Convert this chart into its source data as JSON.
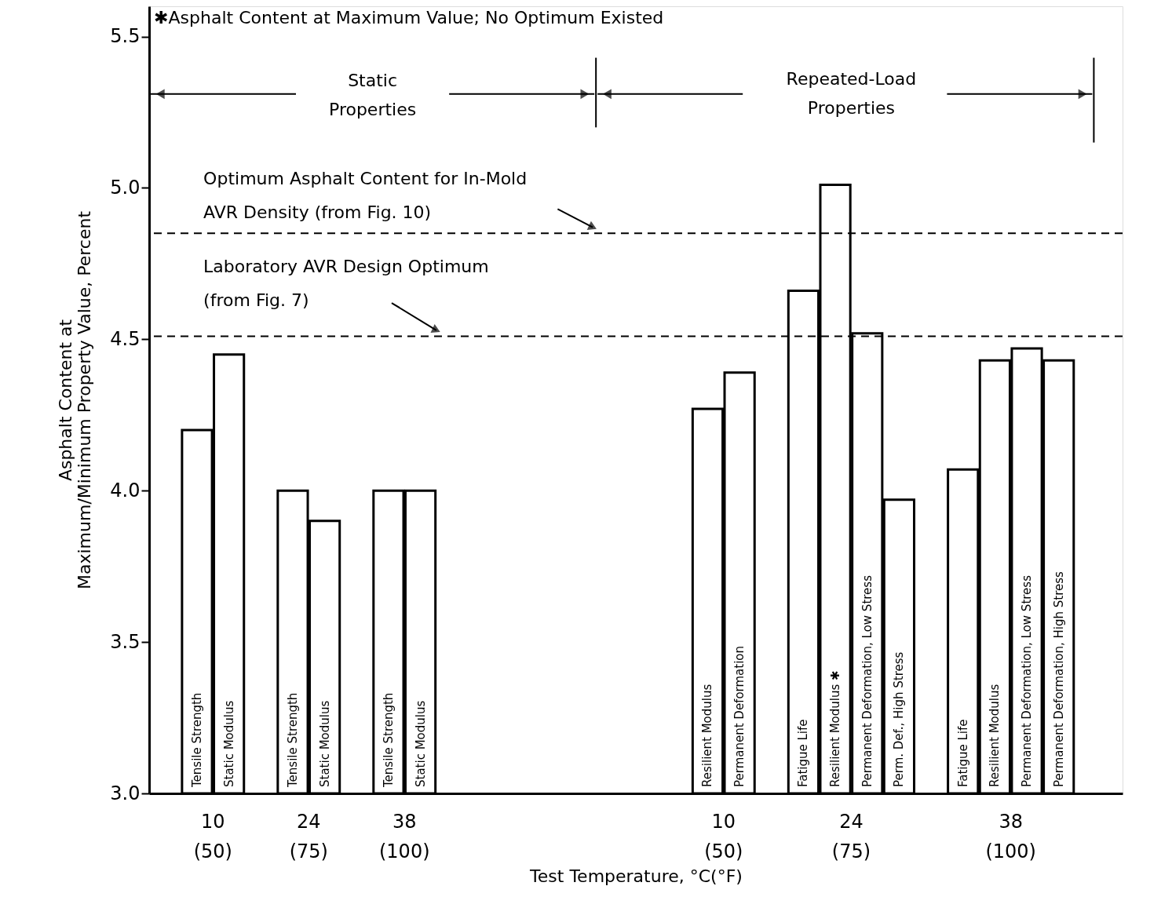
{
  "chart_data": {
    "type": "bar",
    "xlabel": "Test Temperature, °C(°F)",
    "ylabel": "Asphalt Content at\nMaximum/Minimum Property Value, Percent",
    "categories": [
      null,
      "Tensile Strength",
      "Static Modulus",
      null,
      "Tensile Strength",
      "Static Modulus",
      null,
      "Tensile Strength",
      "Static Modulus",
      null,
      null,
      null,
      null,
      null,
      null,
      null,
      null,
      "Resilient Modulus",
      "Permanent Deformation",
      null,
      "Fatigue Life",
      "Resilient Modulus ✱",
      "Permanent Deformation, Low Stress",
      "Perm. Def., High Stress",
      null,
      "Fatigue Life",
      "Resilient Modulus",
      "Permanent Deformation, Low Stress",
      "Permanent Deformation, High Stress",
      null
    ],
    "values": [
      null,
      4.2,
      4.45,
      null,
      4.0,
      3.9,
      null,
      4.0,
      4.0,
      null,
      null,
      null,
      null,
      null,
      null,
      null,
      null,
      4.27,
      4.39,
      null,
      4.66,
      5.01,
      4.52,
      3.97,
      null,
      4.07,
      4.43,
      4.47,
      4.43,
      null
    ],
    "color": "#ffffff",
    "ylim": [
      3.0,
      5.6
    ],
    "yticks": [
      {
        "value": 3,
        "label": "3.0"
      },
      3.5,
      {
        "value": 4,
        "label": "4.0"
      },
      4.5,
      {
        "value": 5,
        "label": "5.0"
      },
      5.5
    ],
    "ref_lines": [
      {
        "axis": "y",
        "value": 4.85,
        "label": "Optimum Asphalt Content for In-Mold\nAVR Density (from Fig. 10)",
        "line_style": "dashed",
        "color": "#000000"
      },
      {
        "axis": "y",
        "value": 4.51,
        "label": "Laboratory AVR Design Optimum\n(from Fig. 7)",
        "line_style": "dashed",
        "color": "#000000"
      }
    ],
    "annotations": [
      "✱Asphalt Content at Maximum Value;  No Optimum Existed",
      "Static\nProperties",
      "Repeated-Load\nProperties",
      "10\n(50)",
      "24\n(75)",
      "38\n(100)",
      "10\n(50)",
      "24\n(75)",
      "38\n(100)"
    ],
    "grid": false
  }
}
